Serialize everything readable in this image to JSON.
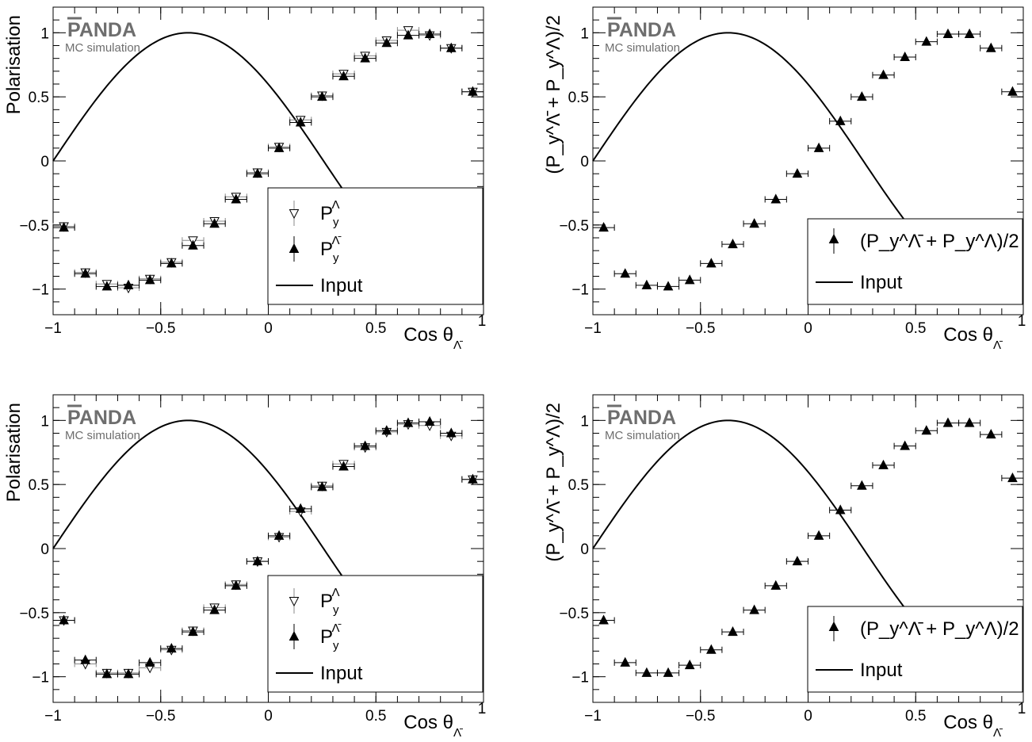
{
  "figure": {
    "logo": "PANDA",
    "logo_subtitle": "MC simulation"
  },
  "chart_data": [
    {
      "type": "scatter",
      "panel": "top-left",
      "ylabel": "Polarisation",
      "xlabel": "Cos θ",
      "xlabel_sub": "Λ̄",
      "xlim": [
        -1,
        1
      ],
      "ylim": [
        -1.2,
        1.2
      ],
      "xticks": [
        -1,
        -0.5,
        0,
        0.5,
        1
      ],
      "xtick_labels": [
        "−1",
        "−0.5",
        "0",
        "0.5",
        "1"
      ],
      "yticks": [
        -1,
        -0.5,
        0,
        0.5,
        1
      ],
      "ytick_labels": [
        "−1",
        "−0.5",
        "0",
        "0.5",
        "1"
      ],
      "legend_position": "lower-right",
      "curve": {
        "name": "Input",
        "formula": "sin(2.5 * (x + 1)) at x from -1 to 1"
      },
      "series": [
        {
          "name": "P_y^Λ",
          "legend_main": "P",
          "legend_sub": "y",
          "legend_sup": "Λ",
          "marker": "open-triangle-down",
          "x": [
            -0.95,
            -0.85,
            -0.75,
            -0.65,
            -0.55,
            -0.45,
            -0.35,
            -0.25,
            -0.15,
            -0.05,
            0.05,
            0.15,
            0.25,
            0.35,
            0.45,
            0.55,
            0.65,
            0.75,
            0.85,
            0.95
          ],
          "y": [
            -0.51,
            -0.87,
            -0.96,
            -0.99,
            -0.92,
            -0.79,
            -0.62,
            -0.47,
            -0.28,
            -0.09,
            0.11,
            0.32,
            0.51,
            0.68,
            0.82,
            0.94,
            1.02,
            0.98,
            0.88,
            0.54
          ]
        },
        {
          "name": "P_y^Λ̄",
          "legend_main": "P",
          "legend_sub": "y",
          "legend_sup": "Λ̄",
          "marker": "filled-triangle-up",
          "x": [
            -0.95,
            -0.85,
            -0.75,
            -0.65,
            -0.55,
            -0.45,
            -0.35,
            -0.25,
            -0.15,
            -0.05,
            0.05,
            0.15,
            0.25,
            0.35,
            0.45,
            0.55,
            0.65,
            0.75,
            0.85,
            0.95
          ],
          "y": [
            -0.52,
            -0.88,
            -0.98,
            -0.97,
            -0.93,
            -0.8,
            -0.66,
            -0.49,
            -0.3,
            -0.1,
            0.1,
            0.3,
            0.5,
            0.66,
            0.8,
            0.92,
            0.98,
            0.99,
            0.88,
            0.54
          ]
        }
      ],
      "xerr": 0.05
    },
    {
      "type": "scatter",
      "panel": "top-right",
      "ylabel": "(P_y^Λ̄ + P_y^Λ)/2",
      "xlabel": "Cos θ",
      "xlabel_sub": "Λ̄",
      "xlim": [
        -1,
        1
      ],
      "ylim": [
        -1.2,
        1.2
      ],
      "xticks": [
        -1,
        -0.5,
        0,
        0.5,
        1
      ],
      "xtick_labels": [
        "−1",
        "−0.5",
        "0",
        "0.5",
        "1"
      ],
      "yticks": [
        -1,
        -0.5,
        0,
        0.5,
        1
      ],
      "ytick_labels": [
        "−1",
        "−0.5",
        "0",
        "0.5",
        "1"
      ],
      "legend_position": "lower-right",
      "curve": {
        "name": "Input",
        "formula": "sin(2.5 * (x + 1)) at x from -1 to 1"
      },
      "series": [
        {
          "name": "(P_y^Λ̄ + P_y^Λ)/2",
          "marker": "filled-triangle-up",
          "x": [
            -0.95,
            -0.85,
            -0.75,
            -0.65,
            -0.55,
            -0.45,
            -0.35,
            -0.25,
            -0.15,
            -0.05,
            0.05,
            0.15,
            0.25,
            0.35,
            0.45,
            0.55,
            0.65,
            0.75,
            0.85,
            0.95
          ],
          "y": [
            -0.52,
            -0.88,
            -0.97,
            -0.98,
            -0.93,
            -0.8,
            -0.65,
            -0.49,
            -0.3,
            -0.1,
            0.1,
            0.31,
            0.5,
            0.67,
            0.81,
            0.93,
            0.99,
            0.99,
            0.88,
            0.54
          ]
        }
      ],
      "xerr": 0.05
    },
    {
      "type": "scatter",
      "panel": "bottom-left",
      "ylabel": "Polarisation",
      "xlabel": "Cos θ",
      "xlabel_sub": "Λ̄",
      "xlim": [
        -1,
        1
      ],
      "ylim": [
        -1.2,
        1.2
      ],
      "xticks": [
        -1,
        -0.5,
        0,
        0.5,
        1
      ],
      "xtick_labels": [
        "−1",
        "−0.5",
        "0",
        "0.5",
        "1"
      ],
      "yticks": [
        -1,
        -0.5,
        0,
        0.5,
        1
      ],
      "ytick_labels": [
        "−1",
        "−0.5",
        "0",
        "0.5",
        "1"
      ],
      "legend_position": "lower-right",
      "curve": {
        "name": "Input",
        "formula": "sin(2.5 * (x + 1)) at x from -1 to 1"
      },
      "series": [
        {
          "name": "P_y^Λ",
          "legend_main": "P",
          "legend_sub": "y",
          "legend_sup": "Λ",
          "marker": "open-triangle-down",
          "x": [
            -0.95,
            -0.85,
            -0.75,
            -0.65,
            -0.55,
            -0.45,
            -0.35,
            -0.25,
            -0.15,
            -0.05,
            0.05,
            0.15,
            0.25,
            0.35,
            0.45,
            0.55,
            0.65,
            0.75,
            0.85,
            0.95
          ],
          "y": [
            -0.56,
            -0.9,
            -0.97,
            -0.97,
            -0.93,
            -0.79,
            -0.64,
            -0.46,
            -0.28,
            -0.1,
            0.09,
            0.29,
            0.49,
            0.66,
            0.79,
            0.91,
            0.97,
            0.96,
            0.88,
            0.54
          ]
        },
        {
          "name": "P_y^Λ̄",
          "legend_main": "P",
          "legend_sub": "y",
          "legend_sup": "Λ̄",
          "marker": "filled-triangle-up",
          "x": [
            -0.95,
            -0.85,
            -0.75,
            -0.65,
            -0.55,
            -0.45,
            -0.35,
            -0.25,
            -0.15,
            -0.05,
            0.05,
            0.15,
            0.25,
            0.35,
            0.45,
            0.55,
            0.65,
            0.75,
            0.85,
            0.95
          ],
          "y": [
            -0.56,
            -0.87,
            -0.98,
            -0.98,
            -0.89,
            -0.78,
            -0.65,
            -0.48,
            -0.29,
            -0.1,
            0.1,
            0.31,
            0.48,
            0.64,
            0.8,
            0.92,
            0.98,
            0.99,
            0.9,
            0.54
          ]
        }
      ],
      "xerr": 0.05
    },
    {
      "type": "scatter",
      "panel": "bottom-right",
      "ylabel": "(P_y^Λ̄ + P_y^Λ)/2",
      "xlabel": "Cos θ",
      "xlabel_sub": "Λ̄",
      "xlim": [
        -1,
        1
      ],
      "ylim": [
        -1.2,
        1.2
      ],
      "xticks": [
        -1,
        -0.5,
        0,
        0.5,
        1
      ],
      "xtick_labels": [
        "−1",
        "−0.5",
        "0",
        "0.5",
        "1"
      ],
      "yticks": [
        -1,
        -0.5,
        0,
        0.5,
        1
      ],
      "ytick_labels": [
        "−1",
        "−0.5",
        "0",
        "0.5",
        "1"
      ],
      "legend_position": "lower-right",
      "curve": {
        "name": "Input",
        "formula": "sin(2.5 * (x + 1)) at x from -1 to 1"
      },
      "series": [
        {
          "name": "(P_y^Λ̄ + P_y^Λ)/2",
          "marker": "filled-triangle-up",
          "x": [
            -0.95,
            -0.85,
            -0.75,
            -0.65,
            -0.55,
            -0.45,
            -0.35,
            -0.25,
            -0.15,
            -0.05,
            0.05,
            0.15,
            0.25,
            0.35,
            0.45,
            0.55,
            0.65,
            0.75,
            0.85,
            0.95
          ],
          "y": [
            -0.56,
            -0.89,
            -0.97,
            -0.97,
            -0.91,
            -0.79,
            -0.65,
            -0.48,
            -0.29,
            -0.1,
            0.1,
            0.3,
            0.49,
            0.65,
            0.8,
            0.92,
            0.98,
            0.98,
            0.89,
            0.55
          ]
        }
      ],
      "xerr": 0.05
    }
  ]
}
